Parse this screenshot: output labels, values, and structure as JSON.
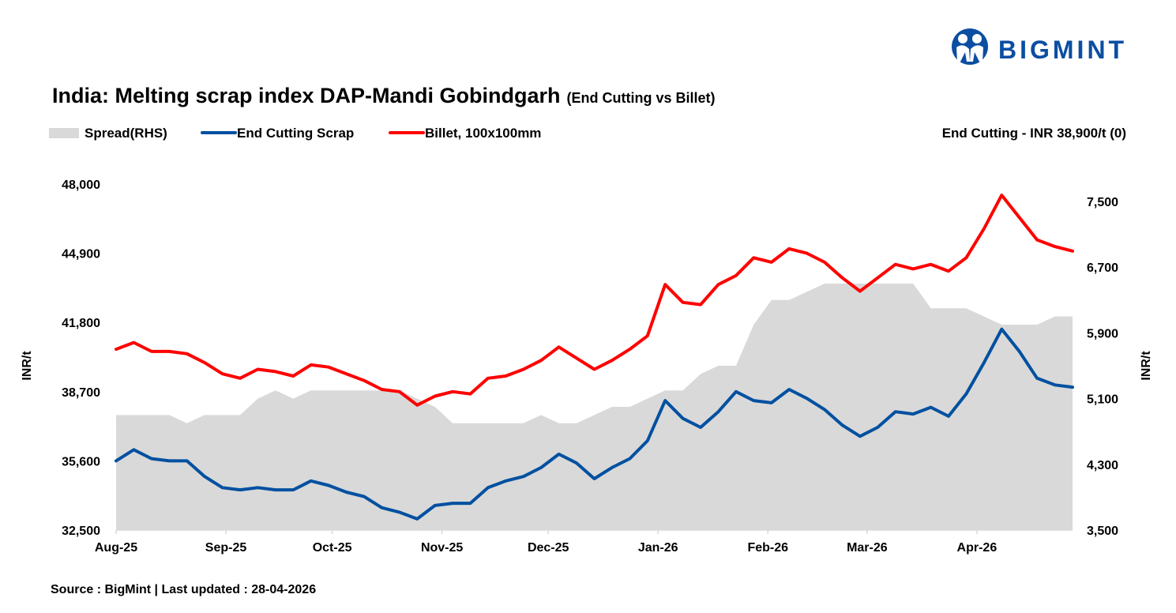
{
  "brand": {
    "name": "BIGMINT",
    "color": "#0b4ea2"
  },
  "chart_data": {
    "type": "line",
    "title": "India: Melting scrap index DAP-Mandi Gobindgarh",
    "subtitle": "(End Cutting vs Billet)",
    "annotation": "End Cutting - INR 38,900/t (0)",
    "source": "Source : BigMint | Last updated : 28-04-2026",
    "ylabel": "INR/t",
    "ylabel_right": "INR/t",
    "ylim": [
      32500,
      48000
    ],
    "ylim_right": [
      3500,
      7500
    ],
    "yticks": [
      "32,500",
      "35,600",
      "38,700",
      "41,800",
      "44,900",
      "48,000"
    ],
    "yticks_right": [
      "3,500",
      "4,300",
      "5,100",
      "5,900",
      "6,700",
      "7,500"
    ],
    "xlim": [
      "2025-08-01",
      "2026-04-28"
    ],
    "xticks": [
      {
        "label": "Aug-25",
        "date": "2025-08-01"
      },
      {
        "label": "Sep-25",
        "date": "2025-09-01"
      },
      {
        "label": "Oct-25",
        "date": "2025-10-01"
      },
      {
        "label": "Nov-25",
        "date": "2025-11-01"
      },
      {
        "label": "Dec-25",
        "date": "2025-12-01"
      },
      {
        "label": "Jan-26",
        "date": "2026-01-01"
      },
      {
        "label": "Feb-26",
        "date": "2026-02-01"
      },
      {
        "label": "Mar-26",
        "date": "2026-03-01"
      },
      {
        "label": "Apr-26",
        "date": "2026-04-01"
      }
    ],
    "grid": false,
    "legend_placement": "top-left",
    "x": [
      "2025-08-01",
      "2025-08-06",
      "2025-08-11",
      "2025-08-16",
      "2025-08-21",
      "2025-08-26",
      "2025-08-31",
      "2025-09-05",
      "2025-09-10",
      "2025-09-15",
      "2025-09-20",
      "2025-09-25",
      "2025-09-30",
      "2025-10-05",
      "2025-10-10",
      "2025-10-15",
      "2025-10-20",
      "2025-10-25",
      "2025-10-30",
      "2025-11-04",
      "2025-11-09",
      "2025-11-14",
      "2025-11-19",
      "2025-11-24",
      "2025-11-29",
      "2025-12-04",
      "2025-12-09",
      "2025-12-14",
      "2025-12-19",
      "2025-12-24",
      "2025-12-29",
      "2026-01-03",
      "2026-01-08",
      "2026-01-13",
      "2026-01-18",
      "2026-01-23",
      "2026-01-28",
      "2026-02-02",
      "2026-02-07",
      "2026-02-12",
      "2026-02-17",
      "2026-02-22",
      "2026-02-27",
      "2026-03-04",
      "2026-03-09",
      "2026-03-14",
      "2026-03-19",
      "2026-03-24",
      "2026-03-29",
      "2026-04-03",
      "2026-04-08",
      "2026-04-13",
      "2026-04-18",
      "2026-04-23",
      "2026-04-28"
    ],
    "series": [
      {
        "name": "Spread(RHS)",
        "type": "area",
        "axis": "right",
        "color": "#d9d9d9",
        "values": [
          4900,
          4900,
          4900,
          4900,
          4800,
          4900,
          4900,
          4900,
          5100,
          5200,
          5100,
          5200,
          5200,
          5200,
          5200,
          5200,
          5200,
          5100,
          5000,
          4800,
          4800,
          4800,
          4800,
          4800,
          4900,
          4800,
          4800,
          4900,
          5000,
          5000,
          5100,
          5200,
          5200,
          5400,
          5500,
          5500,
          6000,
          6300,
          6300,
          6400,
          6500,
          6500,
          6500,
          6500,
          6500,
          6500,
          6200,
          6200,
          6200,
          6100,
          6000,
          6000,
          6000,
          6100,
          6100
        ]
      },
      {
        "name": "End Cutting Scrap",
        "type": "line",
        "axis": "left",
        "color": "#0050a0",
        "values": [
          35600,
          36100,
          35700,
          35600,
          35600,
          34900,
          34400,
          34300,
          34400,
          34300,
          34300,
          34700,
          34500,
          34200,
          34000,
          33500,
          33300,
          33000,
          33600,
          33700,
          33700,
          34400,
          34700,
          34900,
          35300,
          35900,
          35500,
          34800,
          35300,
          35700,
          36500,
          38300,
          37500,
          37100,
          37800,
          38700,
          38300,
          38200,
          38800,
          38400,
          37900,
          37200,
          36700,
          37100,
          37800,
          37700,
          38000,
          37600,
          38600,
          40000,
          41500,
          40500,
          39300,
          39000,
          38900
        ]
      },
      {
        "name": "Billet, 100x100mm",
        "type": "line",
        "axis": "left",
        "color": "#ff0000",
        "values": [
          40600,
          40900,
          40500,
          40500,
          40400,
          40000,
          39500,
          39300,
          39700,
          39600,
          39400,
          39900,
          39800,
          39500,
          39200,
          38800,
          38700,
          38100,
          38500,
          38700,
          38600,
          39300,
          39400,
          39700,
          40100,
          40700,
          40200,
          39700,
          40100,
          40600,
          41200,
          43500,
          42700,
          42600,
          43500,
          43900,
          44700,
          44500,
          45100,
          44900,
          44500,
          43800,
          43200,
          43800,
          44400,
          44200,
          44400,
          44100,
          44700,
          46000,
          47500,
          46500,
          45500,
          45200,
          45000
        ]
      }
    ]
  }
}
